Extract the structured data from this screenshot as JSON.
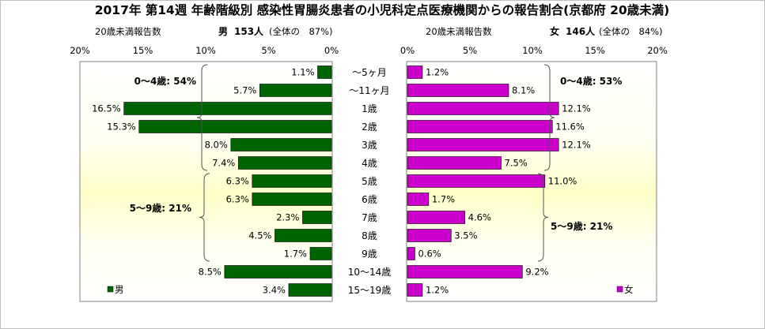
{
  "chart_data": {
    "type": "bar",
    "title": "2017年 第14週 年齢階級別 感染性胃腸炎患者の小児科定点医療機関からの報告割合(京都府 20歳未満)",
    "categories": [
      "～5ヶ月",
      "～11ヶ月",
      "1歳",
      "2歳",
      "3歳",
      "4歳",
      "5歳",
      "6歳",
      "7歳",
      "8歳",
      "9歳",
      "10～14歳",
      "15～19歳"
    ],
    "left": {
      "header": "20歳未満報告数",
      "sex_label": "男",
      "count_text": "153人",
      "share_text": "(全体の　87%)",
      "legend": "男",
      "color": "#006400",
      "values": [
        1.1,
        5.7,
        16.5,
        15.3,
        8.0,
        7.4,
        6.3,
        6.3,
        2.3,
        4.5,
        1.7,
        8.5,
        3.4
      ],
      "value_labels": [
        "1.1%",
        "5.7%",
        "16.5%",
        "15.3%",
        "8.0%",
        "7.4%",
        "6.3%",
        "6.3%",
        "2.3%",
        "4.5%",
        "1.7%",
        "8.5%",
        "3.4%"
      ],
      "xlim": [
        0,
        20
      ],
      "ticks": [
        "20%",
        "15%",
        "10%",
        "5%",
        "0%"
      ],
      "groups": [
        {
          "label": "0～4歳: 54%",
          "from": 0,
          "to": 5
        },
        {
          "label": "5～9歳: 21%",
          "from": 6,
          "to": 10
        }
      ]
    },
    "right": {
      "header": "20歳未満報告数",
      "sex_label": "女",
      "count_text": "146人",
      "share_text": "(全体の　84%)",
      "legend": "女",
      "color": "#cc00cc",
      "values": [
        1.2,
        8.1,
        12.1,
        11.6,
        12.1,
        7.5,
        11.0,
        1.7,
        4.6,
        3.5,
        0.6,
        9.2,
        1.2
      ],
      "value_labels": [
        "1.2%",
        "8.1%",
        "12.1%",
        "11.6%",
        "12.1%",
        "7.5%",
        "11.0%",
        "1.7%",
        "4.6%",
        "3.5%",
        "0.6%",
        "9.2%",
        "1.2%"
      ],
      "xlim": [
        0,
        20
      ],
      "ticks": [
        "0%",
        "5%",
        "10%",
        "15%",
        "20%"
      ],
      "groups": [
        {
          "label": "0～4歳: 53%",
          "from": 0,
          "to": 5
        },
        {
          "label": "5～9歳: 21%",
          "from": 6,
          "to": 10
        }
      ]
    },
    "background_gradient": [
      "#ffffd0",
      "#ffffff"
    ]
  }
}
